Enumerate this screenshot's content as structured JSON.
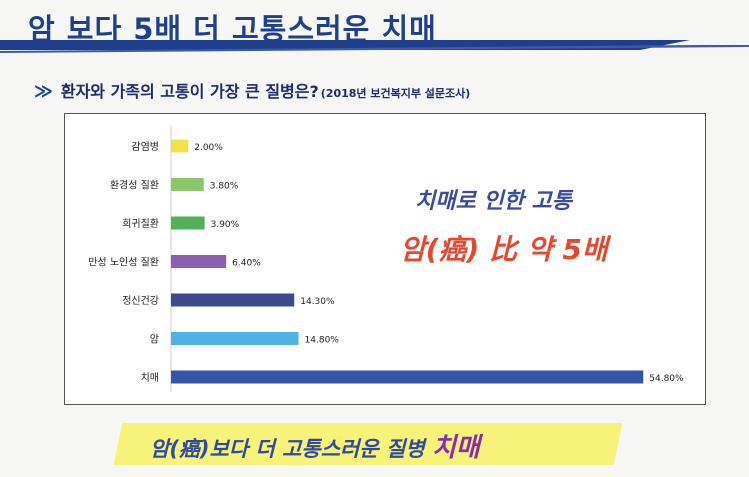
{
  "header": {
    "title": "암 보다 5배 더 고통스러운 치매"
  },
  "subtitle": {
    "arrow": "≫",
    "text": "환자와 가족의 고통이 가장 큰 질병은?",
    "source": "(2018년 보건복지부 설문조사)"
  },
  "callouts": {
    "line1": "치매로 인한 고통",
    "line2": "암(癌) 比 약 5배"
  },
  "banner": {
    "text": "암(癌)보다 더 고통스러운 질병 ",
    "accent": "치매"
  },
  "colors": {
    "title": "#1f3f8c",
    "header_rule": "#1f3f8c",
    "callout1": "#3a4a9c",
    "callout2": "#e8472e",
    "banner_bg": "#f7f279"
  },
  "chart_data": {
    "type": "bar",
    "orientation": "horizontal",
    "categories": [
      "감염병",
      "환경성 질환",
      "희귀질환",
      "만성 노인성 질환",
      "정신건강",
      "암",
      "치매"
    ],
    "values": [
      2.0,
      3.8,
      3.9,
      6.4,
      14.3,
      14.8,
      54.8
    ],
    "value_labels": [
      "2.00%",
      "3.80%",
      "3.90%",
      "6.40%",
      "14.30%",
      "14.80%",
      "54.80%"
    ],
    "unit": "%",
    "xlim": [
      0,
      55
    ],
    "grid": false,
    "legend": "none",
    "bar_colors": [
      "#f2e24a",
      "#8cc66b",
      "#55b05a",
      "#8a5fb0",
      "#3d4a8c",
      "#4fb1e6",
      "#3454a4"
    ]
  }
}
